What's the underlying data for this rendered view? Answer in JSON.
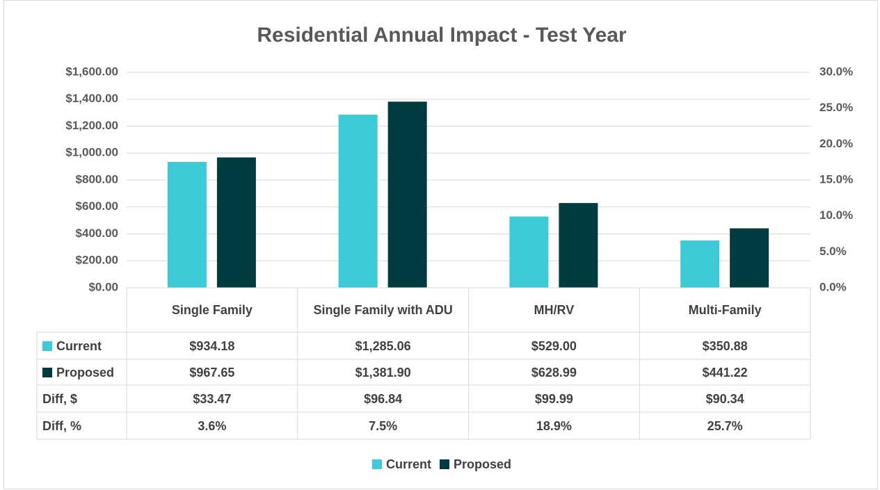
{
  "chart_data": {
    "type": "bar",
    "title": "Residential Annual Impact - Test Year",
    "categories": [
      "Single Family",
      "Single Family with ADU",
      "MH/RV",
      "Multi-Family"
    ],
    "series": [
      {
        "name": "Current",
        "color": "#3ccbd6",
        "values": [
          934.18,
          1285.06,
          529.0,
          350.88
        ],
        "value_labels": [
          "$934.18",
          "$1,285.06",
          "$529.00",
          "$350.88"
        ]
      },
      {
        "name": "Proposed",
        "color": "#003b40",
        "values": [
          967.65,
          1381.9,
          628.99,
          441.22
        ],
        "value_labels": [
          "$967.65",
          "$1,381.90",
          "$628.99",
          "$441.22"
        ]
      }
    ],
    "table_rows": [
      {
        "name": "Diff, $",
        "values": [
          33.47,
          96.84,
          99.99,
          90.34
        ],
        "value_labels": [
          "$33.47",
          "$96.84",
          "$99.99",
          "$90.34"
        ]
      },
      {
        "name": "Diff, %",
        "values": [
          3.6,
          7.5,
          18.9,
          25.7
        ],
        "value_labels": [
          "3.6%",
          "7.5%",
          "18.9%",
          "25.7%"
        ]
      }
    ],
    "ylim": [
      0,
      1600
    ],
    "yticks": [
      {
        "value": 0,
        "label": "$0.00"
      },
      {
        "value": 200,
        "label": "$200.00"
      },
      {
        "value": 400,
        "label": "$400.00"
      },
      {
        "value": 600,
        "label": "$600.00"
      },
      {
        "value": 800,
        "label": "$800.00"
      },
      {
        "value": 1000,
        "label": "$1,000.00"
      },
      {
        "value": 1200,
        "label": "$1,200.00"
      },
      {
        "value": 1400,
        "label": "$1,400.00"
      },
      {
        "value": 1600,
        "label": "$1,600.00"
      }
    ],
    "y2lim": [
      0,
      30
    ],
    "y2ticks": [
      {
        "value": 0,
        "label": "0.0%"
      },
      {
        "value": 5,
        "label": "5.0%"
      },
      {
        "value": 10,
        "label": "10.0%"
      },
      {
        "value": 15,
        "label": "15.0%"
      },
      {
        "value": 20,
        "label": "20.0%"
      },
      {
        "value": 25,
        "label": "25.0%"
      },
      {
        "value": 30,
        "label": "30.0%"
      }
    ],
    "grid": true,
    "legend": "bottom"
  }
}
